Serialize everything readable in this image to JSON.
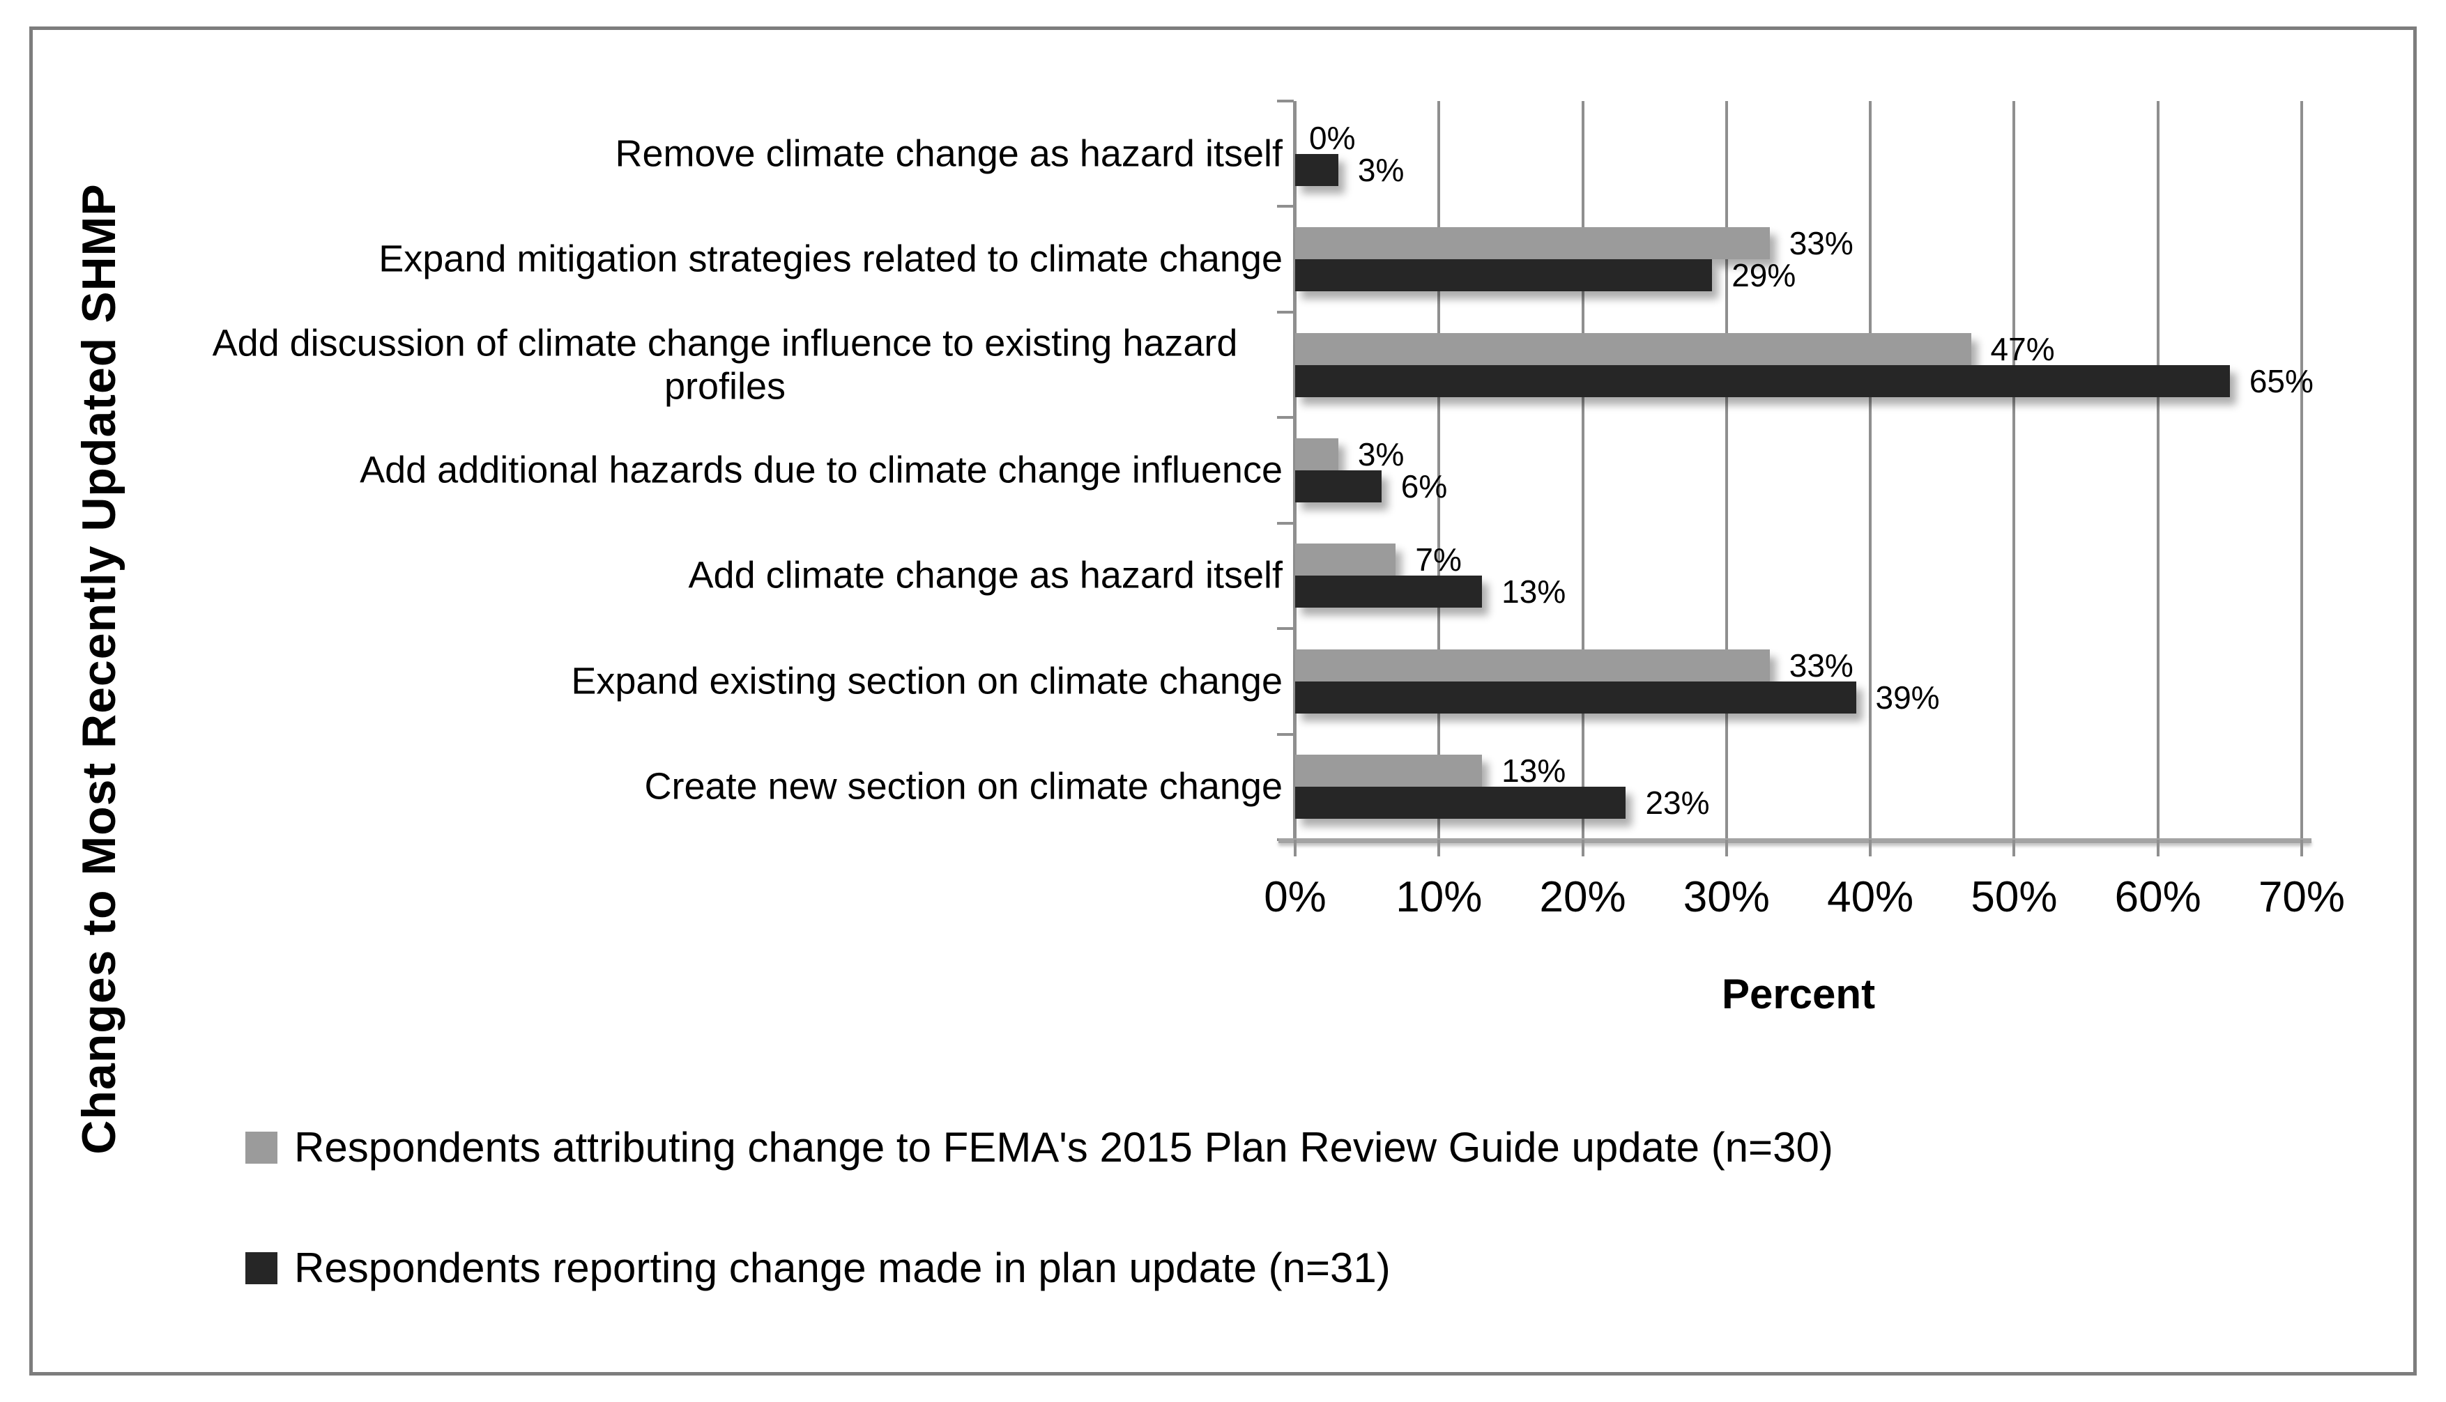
{
  "chart_data": {
    "type": "bar",
    "orientation": "horizontal",
    "xlabel": "Percent",
    "ylabel": "Changes to Most Recently Updated SHMP",
    "xlim": [
      0,
      70
    ],
    "xtick_step": 10,
    "xticks": [
      "0%",
      "10%",
      "20%",
      "30%",
      "40%",
      "50%",
      "60%",
      "70%"
    ],
    "grid": "vertical",
    "legend_position": "bottom-left",
    "value_label_format": "percent-outside-end",
    "categories": [
      "Remove climate change as hazard itself",
      "Expand mitigation strategies related to climate change",
      "Add discussion of climate change influence to existing hazard profiles",
      "Add additional hazards due to climate change influence",
      "Add climate change as hazard itself",
      "Expand existing section on climate change",
      "Create new section on climate change"
    ],
    "series": [
      {
        "name": "Respondents attributing change to FEMA's 2015 Plan Review Guide update (n=30)",
        "color": "#9b9b9b",
        "values": [
          0,
          33,
          47,
          3,
          7,
          33,
          13
        ]
      },
      {
        "name": "Respondents reporting change made in plan update (n=31)",
        "color": "#262626",
        "values": [
          3,
          29,
          65,
          6,
          13,
          39,
          23
        ]
      }
    ]
  }
}
